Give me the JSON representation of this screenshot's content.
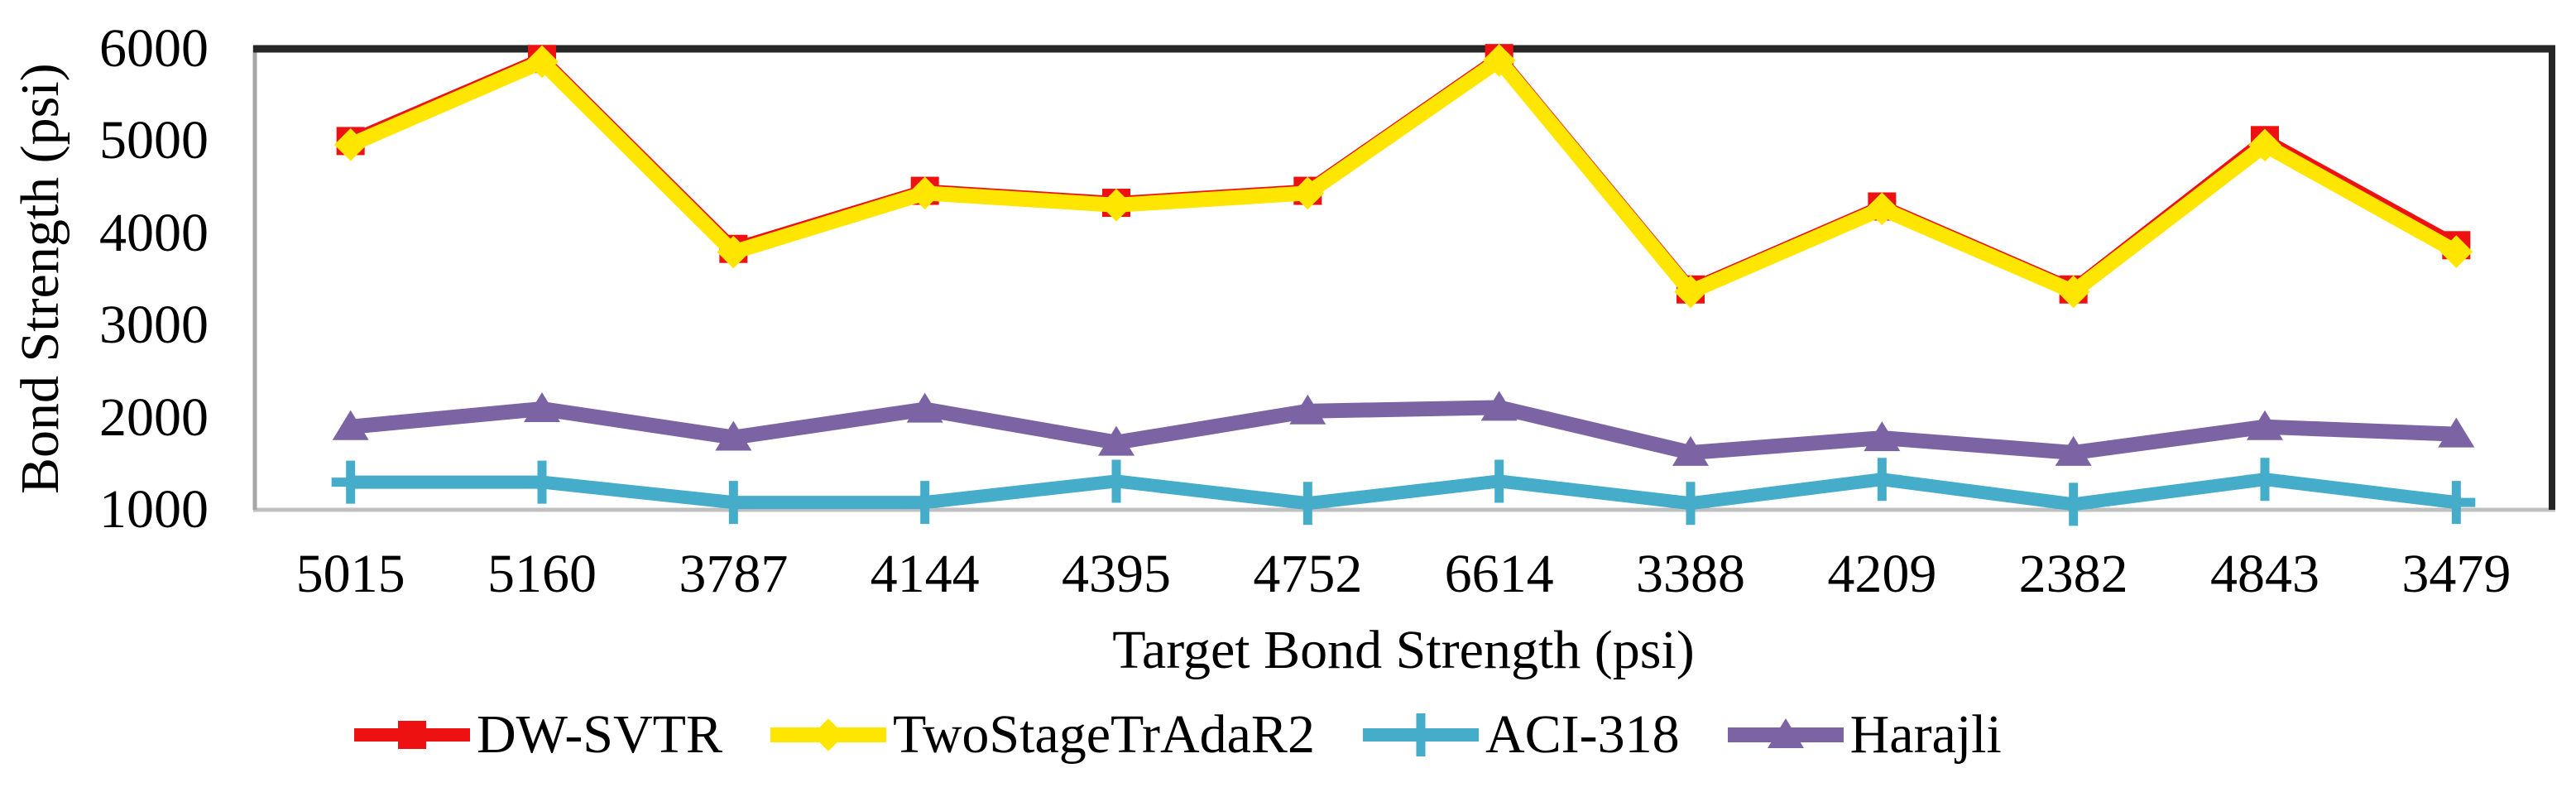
{
  "chart_data": {
    "type": "line",
    "title": "",
    "xlabel": "Target Bond Strength (psi)",
    "ylabel": "Bond Strength (psi)",
    "categories": [
      "5015",
      "5160",
      "3787",
      "4144",
      "4395",
      "4752",
      "6614",
      "3388",
      "4209",
      "2382",
      "4843",
      "3479"
    ],
    "y_ticks": [
      "1000",
      "2000",
      "3000",
      "4000",
      "5000",
      "6000"
    ],
    "ylim": [
      1000,
      6000
    ],
    "grid": false,
    "legend_position": "bottom",
    "series": [
      {
        "name": "DW-SVTR",
        "color": "#EE1111",
        "marker": "square",
        "values": [
          5000,
          5890,
          3830,
          4460,
          4330,
          4460,
          5900,
          3390,
          4290,
          3390,
          5010,
          3870
        ]
      },
      {
        "name": "TwoStageTrAdaR2",
        "color": "#FFE600",
        "marker": "diamond",
        "values": [
          4960,
          5860,
          3795,
          4435,
          4305,
          4435,
          5875,
          3365,
          4265,
          3365,
          4955,
          3800
        ]
      },
      {
        "name": "ACI-318",
        "color": "#45ADC9",
        "marker": "plus",
        "values": [
          1300,
          1300,
          1080,
          1080,
          1310,
          1070,
          1310,
          1070,
          1330,
          1060,
          1330,
          1080
        ]
      },
      {
        "name": "Harajli",
        "color": "#7C63A4",
        "marker": "triangle",
        "values": [
          1900,
          2095,
          1785,
          2090,
          1730,
          2070,
          2110,
          1620,
          1780,
          1620,
          1900,
          1820
        ]
      }
    ],
    "frame_colors": {
      "top": "#262626",
      "right": "#262626",
      "left": "#A6A6A6",
      "bottom": "#C0C0C0"
    }
  }
}
